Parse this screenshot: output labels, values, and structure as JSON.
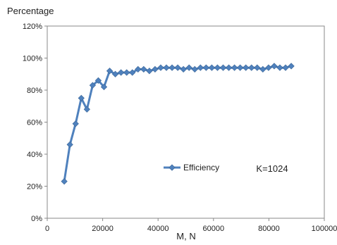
{
  "chart_data": {
    "type": "line",
    "title": "",
    "ylabel": "Percentage",
    "xlabel": "M, N",
    "xlim": [
      0,
      100000
    ],
    "ylim": [
      0,
      120
    ],
    "x_ticks": [
      0,
      20000,
      40000,
      60000,
      80000,
      100000
    ],
    "x_tick_labels": [
      "0",
      "20000",
      "40000",
      "60000",
      "80000",
      "100000"
    ],
    "y_ticks": [
      0,
      20,
      40,
      60,
      80,
      100,
      120
    ],
    "y_tick_labels": [
      "0%",
      "20%",
      "40%",
      "60%",
      "80%",
      "100%",
      "120%"
    ],
    "grid": false,
    "legend_position": "center-right, inside plot",
    "annotation": "K=1024",
    "series": [
      {
        "name": "Efficiency",
        "color": "#4f81bd",
        "marker": "diamond",
        "x": [
          6144,
          8192,
          10240,
          12288,
          14336,
          16384,
          18432,
          20480,
          22528,
          24576,
          26624,
          28672,
          30720,
          32768,
          34816,
          36864,
          38912,
          40960,
          43008,
          45056,
          47104,
          49152,
          51200,
          53248,
          55296,
          57344,
          59392,
          61440,
          63488,
          65536,
          67584,
          69632,
          71680,
          73728,
          75776,
          77824,
          79872,
          81920,
          83968,
          86016,
          88064
        ],
        "y": [
          23,
          46,
          59,
          75,
          68,
          83,
          86,
          82,
          92,
          90,
          91,
          91,
          91,
          93,
          93,
          92,
          93,
          94,
          94,
          94,
          94,
          93,
          94,
          93,
          94,
          94,
          94,
          94,
          94,
          94,
          94,
          94,
          94,
          94,
          94,
          93,
          94,
          95,
          94,
          94,
          95
        ]
      }
    ]
  }
}
